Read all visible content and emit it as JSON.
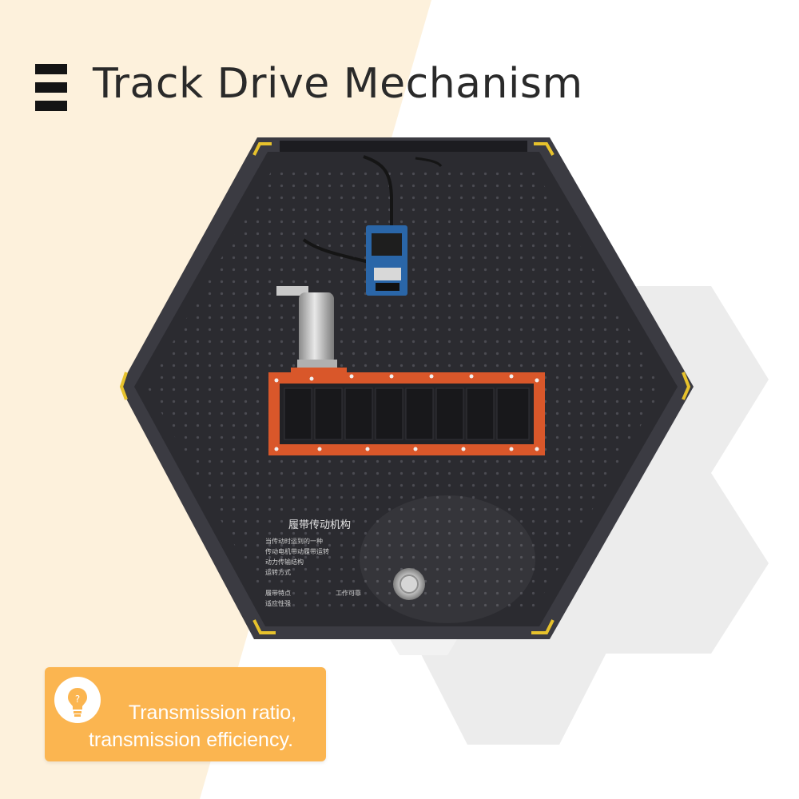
{
  "header": {
    "title": "Track Drive Mechanism",
    "menu_icon": "menu-icon"
  },
  "device": {
    "panel_heading": "履带传动机构",
    "panel_text_lines": [
      "当传动时运到的一种",
      "传动电机带动履带运转",
      "动力传输结构",
      "运转方式",
      "履带特点",
      "工作可靠",
      "适应性强"
    ]
  },
  "callout": {
    "icon": "lightbulb-icon",
    "line1": "Transmission ratio,",
    "line2": "transmission efficiency."
  },
  "colors": {
    "cream": "#fdf1dc",
    "hex_gray": "#ececec",
    "panel": "#2b2b30",
    "track_frame": "#d9572a",
    "callout": "#fbb550"
  }
}
